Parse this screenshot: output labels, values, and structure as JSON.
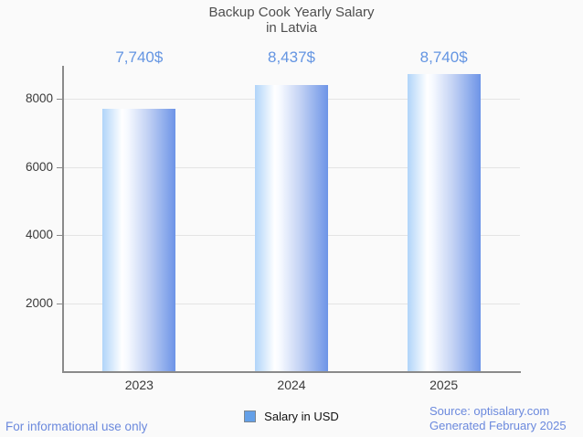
{
  "title": {
    "line1": "Backup Cook Yearly Salary",
    "line2": "in Latvia"
  },
  "chart_data": {
    "type": "bar",
    "categories": [
      "2023",
      "2024",
      "2025"
    ],
    "values": [
      7740,
      8437,
      8740
    ],
    "value_labels": [
      "7,740$",
      "8,437$",
      "8,740$"
    ],
    "title": "Backup Cook Yearly Salary in Latvia",
    "xlabel": "",
    "ylabel": "",
    "ylim": [
      0,
      9000
    ],
    "yticks": [
      2000,
      4000,
      6000,
      8000
    ],
    "grid": true,
    "legend_position": "bottom",
    "series": [
      {
        "name": "Salary in USD",
        "values": [
          7740,
          8437,
          8740
        ]
      }
    ]
  },
  "legend": {
    "label": "Salary in USD",
    "swatch_color": "#64a0e8",
    "swatch_border": "#7d8790"
  },
  "footer": {
    "left": "For informational use only",
    "source": "Source: optisalary.com",
    "generated": "Generated February 2025"
  },
  "colors": {
    "background": "#fafafa",
    "title_text": "#4e4e4e",
    "axis_line": "#8a8a8a",
    "gridline": "#e4e4e4",
    "tick_label": "#3a3a3a",
    "value_label": "#6495e2",
    "footer_text": "#6b89dd",
    "bar_gradient": [
      "#b0d4f9 0%",
      "#ffffff 27%",
      "#f7faff 34%",
      "#c3d2f4 62%",
      "#6d94e7 100%"
    ]
  }
}
